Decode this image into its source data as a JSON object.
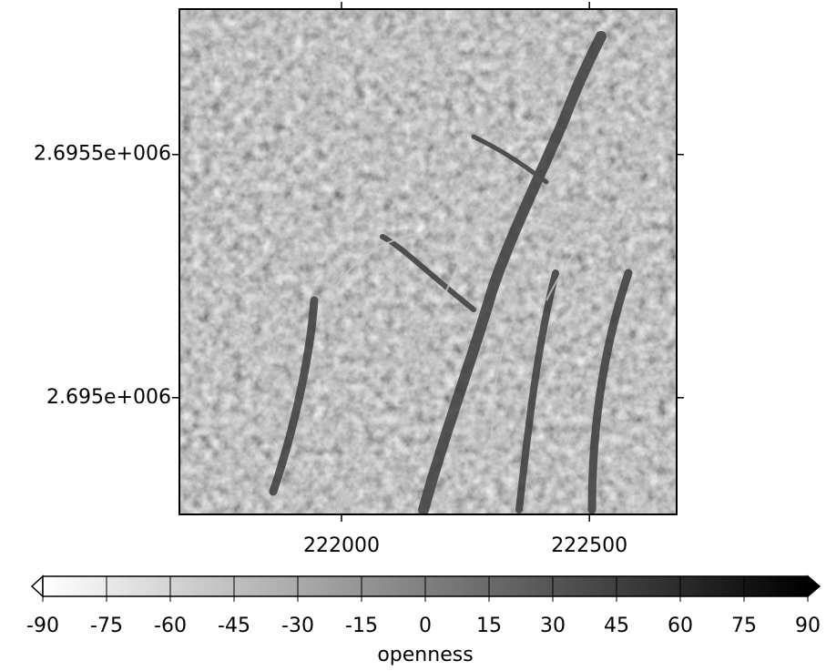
{
  "chart_data": {
    "type": "raster",
    "xlim": [
      221673,
      222676
    ],
    "ylim": [
      2694760,
      2695799
    ],
    "xticks": [
      222000,
      222500
    ],
    "yticks": [
      {
        "value": 2695500,
        "label": "2.6955e+006"
      },
      {
        "value": 2695000,
        "label": "2.695e+006"
      }
    ],
    "colorbar": {
      "label": "openness",
      "lim": [
        -90,
        90
      ],
      "ticks": [
        -90,
        -75,
        -60,
        -45,
        -30,
        -15,
        0,
        15,
        30,
        45,
        60,
        75,
        90
      ],
      "colors": [
        "#ffffff",
        "#000000"
      ]
    }
  }
}
